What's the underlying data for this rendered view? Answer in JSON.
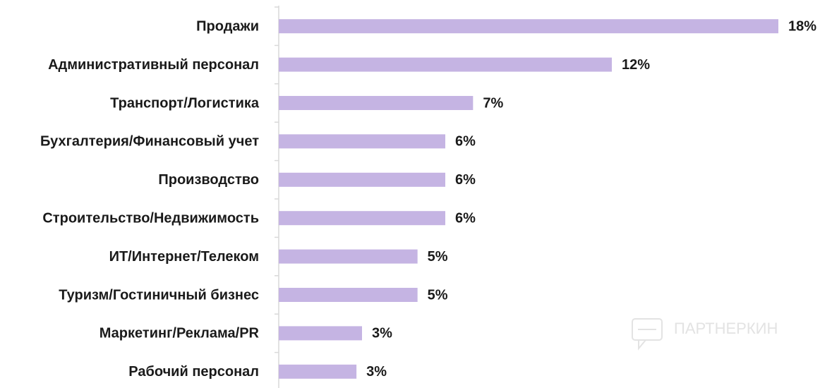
{
  "chart_data": {
    "type": "bar",
    "orientation": "horizontal",
    "categories": [
      "Продажи",
      "Административный персонал",
      "Транспорт/Логистика",
      "Бухгалтерия/Финансовый учет",
      "Производство",
      "Строительство/Недвижимость",
      "ИТ/Интернет/Телеком",
      "Туризм/Гостиничный бизнес",
      "Маркетинг/Реклама/PR",
      "Рабочий персонал"
    ],
    "values": [
      18,
      12,
      7,
      6,
      6,
      6,
      5,
      5,
      3,
      2.8
    ],
    "value_labels": [
      "18%",
      "12%",
      "7%",
      "6%",
      "6%",
      "6%",
      "5%",
      "5%",
      "3%",
      "3%"
    ],
    "color": "#c5b4e3",
    "xlim": [
      0,
      18
    ],
    "watermark": "ПАРТНЕРКИН"
  }
}
